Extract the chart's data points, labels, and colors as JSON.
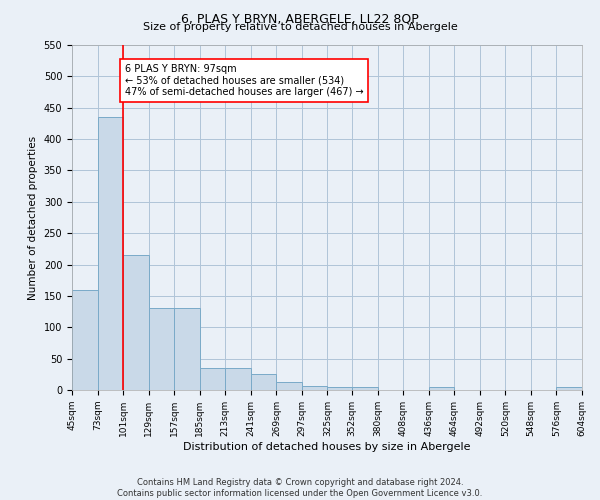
{
  "title": "6, PLAS Y BRYN, ABERGELE, LL22 8QP",
  "subtitle": "Size of property relative to detached houses in Abergele",
  "xlabel": "Distribution of detached houses by size in Abergele",
  "ylabel": "Number of detached properties",
  "bar_values": [
    160,
    435,
    215,
    130,
    130,
    35,
    35,
    25,
    12,
    6,
    5,
    5,
    0,
    0,
    5,
    0,
    0,
    0,
    0,
    5
  ],
  "bin_edges": [
    45,
    73,
    101,
    129,
    157,
    185,
    213,
    241,
    269,
    297,
    325,
    352,
    380,
    408,
    436,
    464,
    492,
    520,
    548,
    576,
    604
  ],
  "tick_labels": [
    "45sqm",
    "73sqm",
    "101sqm",
    "129sqm",
    "157sqm",
    "185sqm",
    "213sqm",
    "241sqm",
    "269sqm",
    "297sqm",
    "325sqm",
    "352sqm",
    "380sqm",
    "408sqm",
    "436sqm",
    "464sqm",
    "492sqm",
    "520sqm",
    "548sqm",
    "576sqm",
    "604sqm"
  ],
  "bar_color": "#c9d9e8",
  "bar_edge_color": "#7aaac8",
  "grid_color": "#b0c4d8",
  "bg_color": "#eaf0f7",
  "red_line_x": 101,
  "annotation_text": "6 PLAS Y BRYN: 97sqm\n← 53% of detached houses are smaller (534)\n47% of semi-detached houses are larger (467) →",
  "annotation_box_color": "white",
  "annotation_box_edge": "red",
  "ylim": [
    0,
    550
  ],
  "yticks": [
    0,
    50,
    100,
    150,
    200,
    250,
    300,
    350,
    400,
    450,
    500,
    550
  ],
  "footer_line1": "Contains HM Land Registry data © Crown copyright and database right 2024.",
  "footer_line2": "Contains public sector information licensed under the Open Government Licence v3.0.",
  "title_fontsize": 9,
  "subtitle_fontsize": 8,
  "ylabel_fontsize": 7.5,
  "xlabel_fontsize": 8,
  "tick_fontsize": 6.5,
  "ytick_fontsize": 7,
  "annotation_fontsize": 7,
  "footer_fontsize": 6
}
